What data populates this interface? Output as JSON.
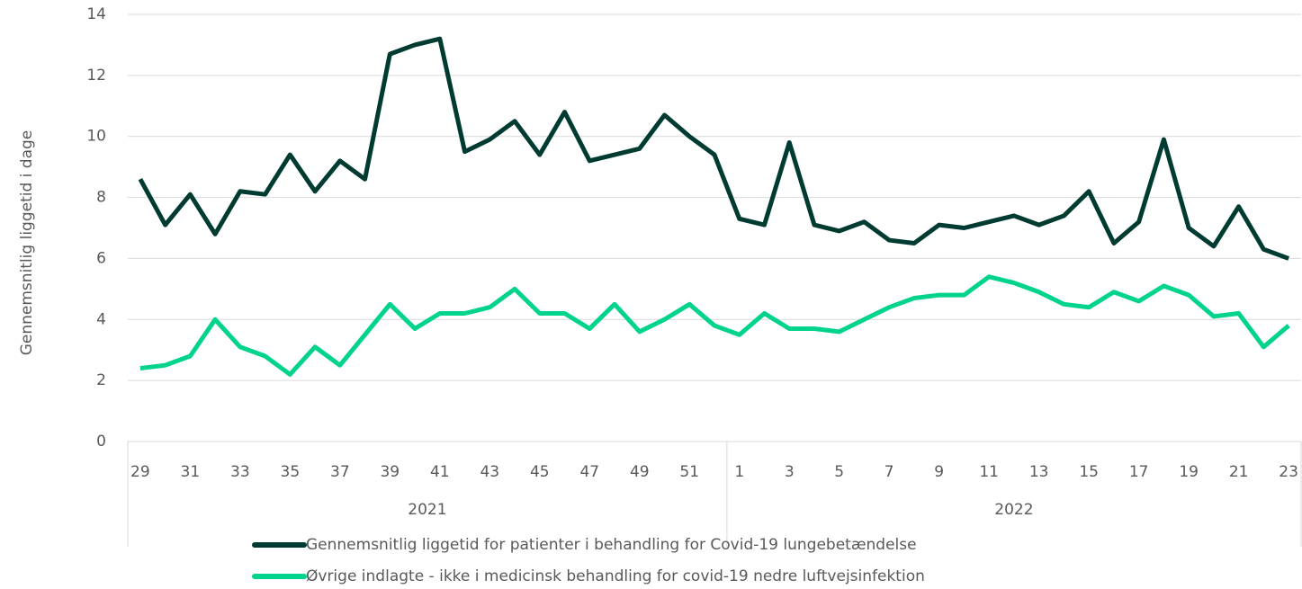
{
  "chart_data": {
    "type": "line",
    "y_label": "Gennemsnitlig liggetid i dage",
    "categories": [
      "29",
      null,
      "31",
      null,
      "33",
      null,
      "35",
      null,
      "37",
      null,
      "39",
      null,
      "41",
      null,
      "43",
      null,
      "45",
      null,
      "47",
      null,
      "49",
      null,
      "51",
      null,
      "1",
      null,
      "3",
      null,
      "5",
      null,
      "7",
      null,
      "9",
      null,
      "11",
      null,
      "13",
      null,
      "15",
      null,
      "17",
      null,
      "19",
      null,
      "21",
      null,
      "23"
    ],
    "groups": [
      {
        "name": "2021",
        "span": 24
      },
      {
        "name": "2022",
        "span": 23
      }
    ],
    "series": [
      {
        "name": "Gennemsnitlig liggetid for patienter i behandling for Covid-19 lungebetændelse",
        "color": "#003b32",
        "values": [
          8.6,
          7.1,
          8.1,
          6.8,
          8.2,
          8.1,
          9.4,
          8.2,
          9.2,
          8.6,
          12.7,
          13.0,
          13.2,
          9.5,
          9.9,
          10.5,
          9.4,
          10.8,
          9.2,
          9.4,
          9.6,
          10.7,
          10.0,
          9.4,
          7.3,
          7.1,
          9.8,
          7.1,
          6.9,
          7.2,
          6.6,
          6.5,
          7.1,
          7.0,
          7.2,
          7.4,
          7.1,
          7.4,
          8.2,
          6.5,
          7.2,
          9.9,
          7.0,
          6.4,
          7.7,
          6.3,
          6.0
        ]
      },
      {
        "name": "Øvrige indlagte - ikke i medicinsk behandling for covid-19 nedre luftvejsinfektion",
        "color": "#00d38c",
        "values": [
          2.4,
          2.5,
          2.8,
          4.0,
          3.1,
          2.8,
          2.2,
          3.1,
          2.5,
          3.5,
          4.5,
          3.7,
          4.2,
          4.2,
          4.4,
          5.0,
          4.2,
          4.2,
          3.7,
          4.5,
          3.6,
          4.0,
          4.5,
          3.8,
          3.5,
          4.2,
          3.7,
          3.7,
          3.6,
          4.0,
          4.4,
          4.7,
          4.8,
          4.8,
          5.4,
          5.2,
          4.9,
          4.5,
          4.4,
          4.9,
          4.6,
          5.1,
          4.8,
          4.1,
          4.2,
          3.1,
          3.8
        ]
      }
    ],
    "ylim": [
      0,
      14
    ],
    "yticks": [
      0,
      2,
      4,
      6,
      8,
      10,
      12,
      14
    ],
    "grid": true
  }
}
